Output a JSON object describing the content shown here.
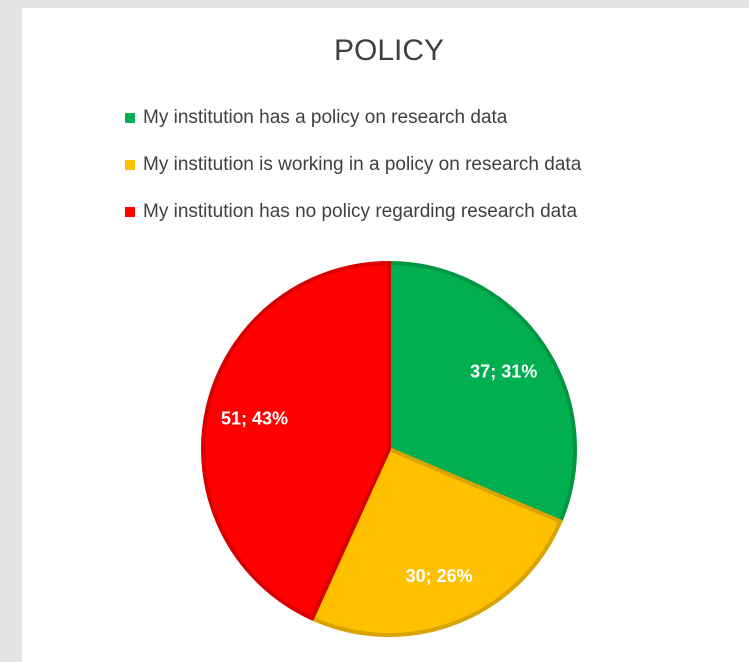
{
  "chart_data": {
    "type": "pie",
    "title": "POLICY",
    "categories": [
      "My institution has a policy on research data",
      "My institution is working in a policy on research data",
      "My institution has no policy regarding research data"
    ],
    "values": [
      37,
      30,
      51
    ],
    "value_labels": [
      "37; 31%",
      "30; 26%",
      "51; 43%"
    ],
    "colors": [
      "#00b050",
      "#ffc000",
      "#ff0000"
    ],
    "legend": "top"
  }
}
